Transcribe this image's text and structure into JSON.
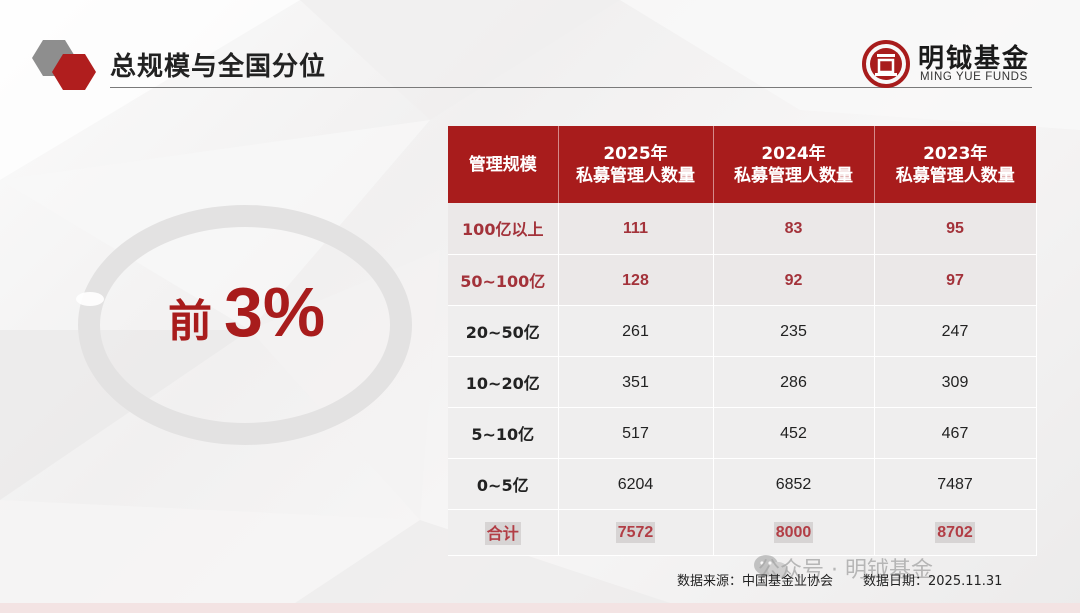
{
  "header": {
    "title": "总规模与全国分位"
  },
  "brand": {
    "name": "明钺基金",
    "sub": "MING YUE FUNDS",
    "logo_icon": "seal-logo-icon",
    "color": "#a81c1c"
  },
  "highlight": {
    "prefix": "前",
    "value": "3%"
  },
  "table": {
    "headers": [
      {
        "l1": "管理规模",
        "l2": ""
      },
      {
        "l1": "2025年",
        "l2": "私募管理人数量"
      },
      {
        "l1": "2024年",
        "l2": "私募管理人数量"
      },
      {
        "l1": "2023年",
        "l2": "私募管理人数量"
      }
    ],
    "rows": [
      {
        "cat": "100亿以上",
        "v2025": "111",
        "v2024": "83",
        "v2023": "95"
      },
      {
        "cat": "50~100亿",
        "v2025": "128",
        "v2024": "92",
        "v2023": "97"
      },
      {
        "cat": "20~50亿",
        "v2025": "261",
        "v2024": "235",
        "v2023": "247"
      },
      {
        "cat": "10~20亿",
        "v2025": "351",
        "v2024": "286",
        "v2023": "309"
      },
      {
        "cat": "5~10亿",
        "v2025": "517",
        "v2024": "452",
        "v2023": "467"
      },
      {
        "cat": "0~5亿",
        "v2025": "6204",
        "v2024": "6852",
        "v2023": "7487"
      }
    ],
    "total": {
      "cat": "合计",
      "v2025": "7572",
      "v2024": "8000",
      "v2023": "8702"
    }
  },
  "footer": {
    "source": "数据来源：中国基金业协会",
    "date": "数据日期：2025.11.31"
  },
  "watermark": {
    "text": "公众号 · 明钺基金",
    "icon": "wechat-icon"
  },
  "colors": {
    "accent": "#a81c1c",
    "highlight_text": "#a3323a",
    "header_gray": "#8e8e8e"
  }
}
